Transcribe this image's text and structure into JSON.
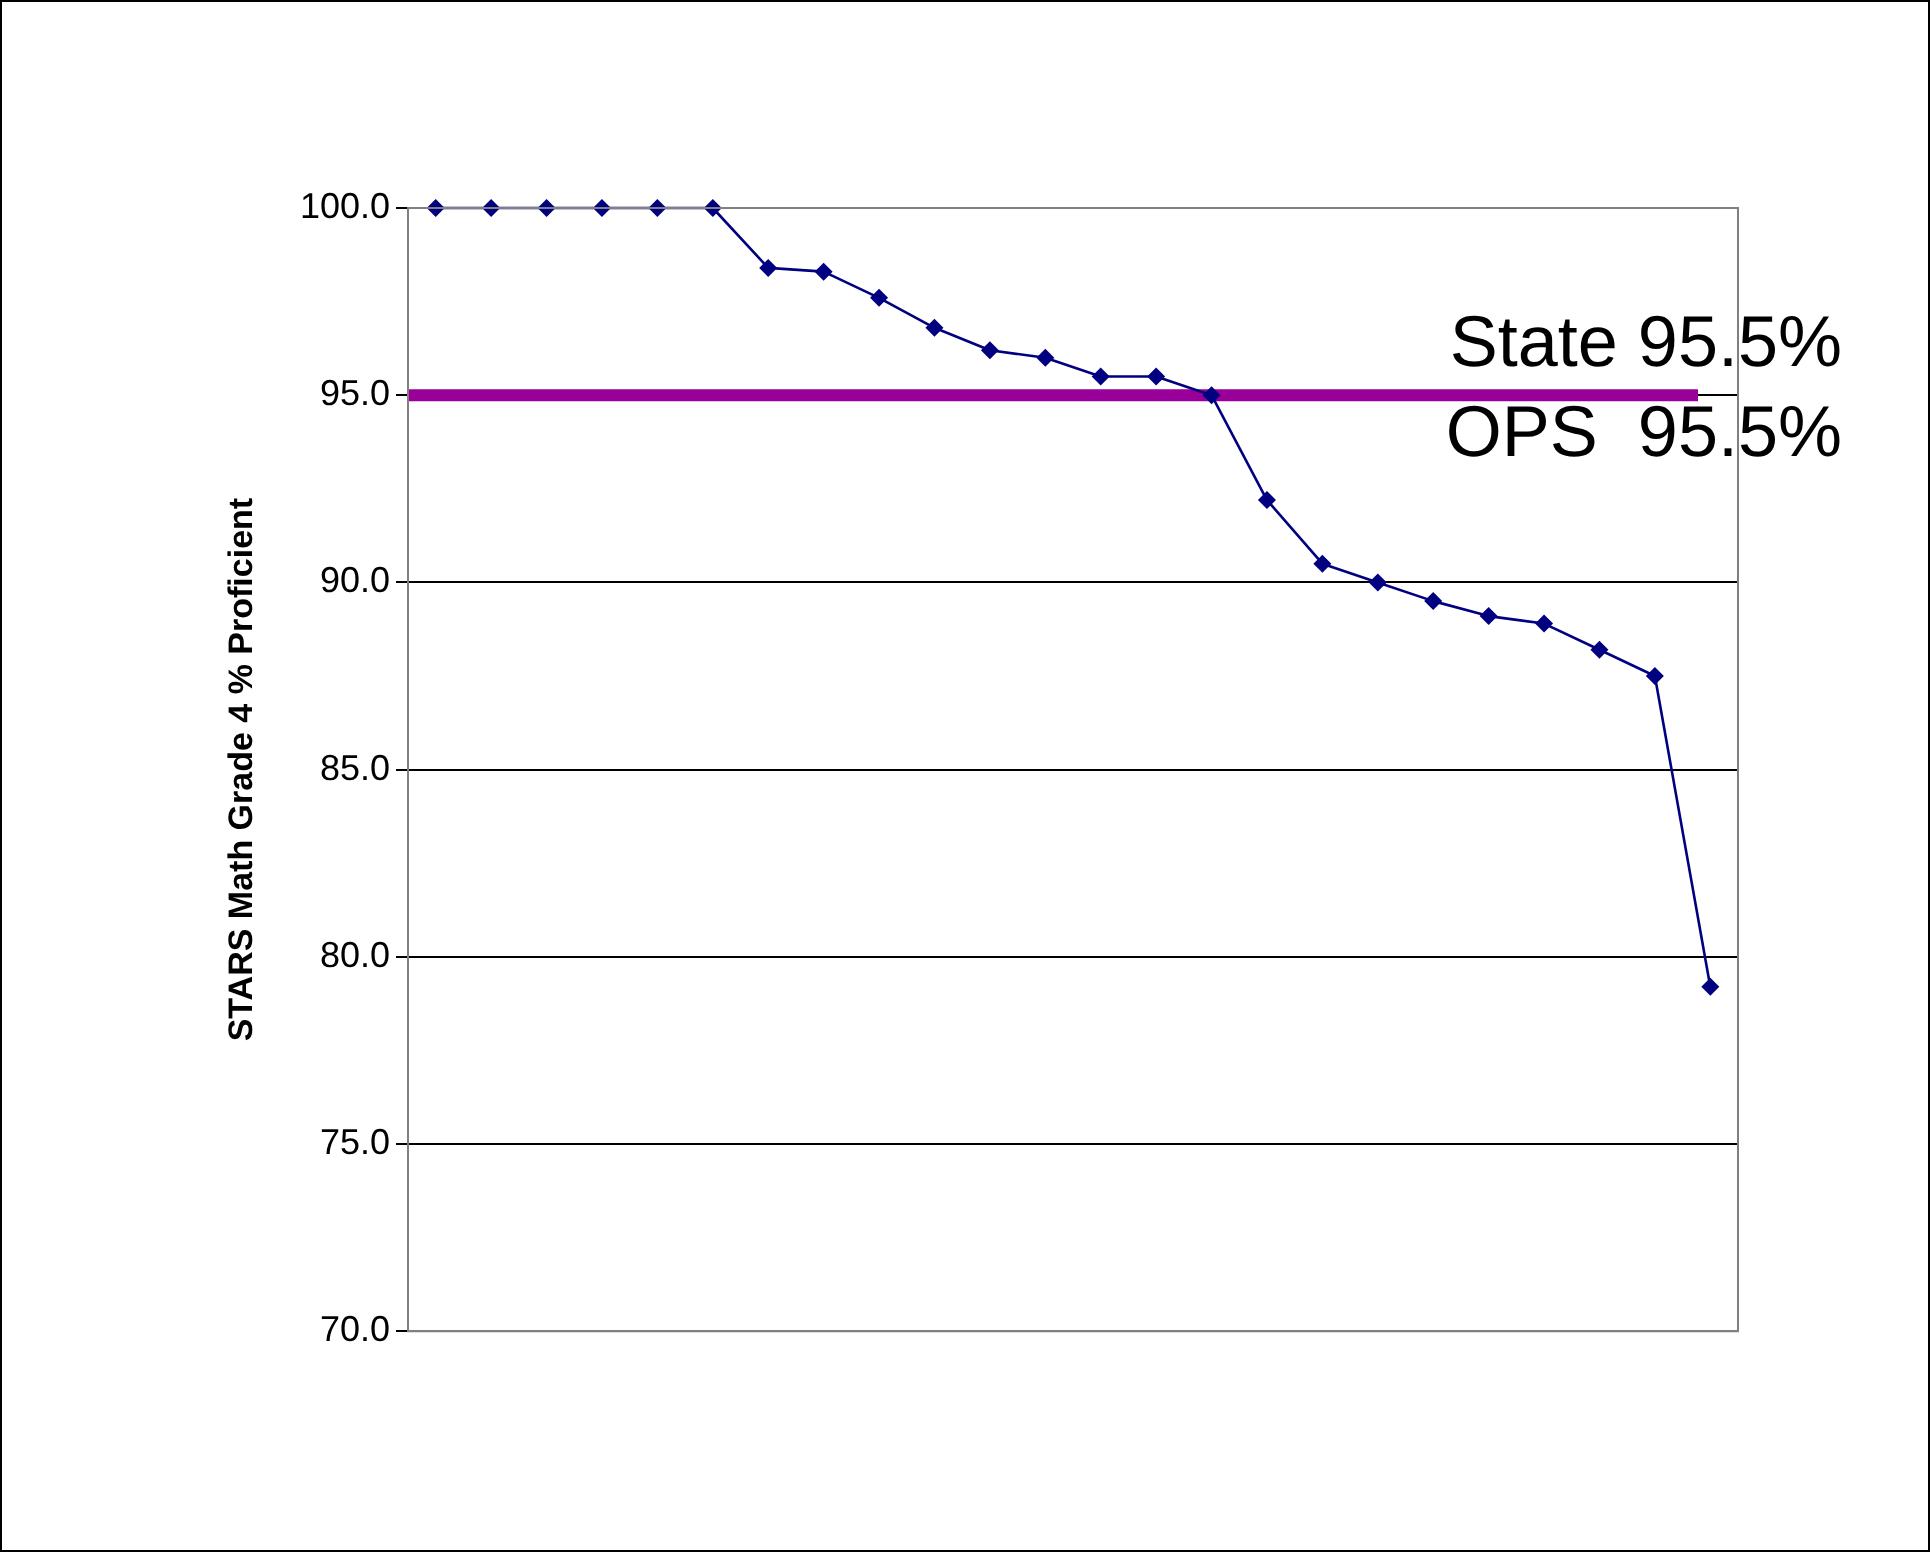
{
  "chart_data": {
    "type": "line",
    "ylabel": "STARS Math Grade 4 % Proficient",
    "categories": [
      null,
      null,
      null,
      null,
      null,
      null,
      null,
      null,
      null,
      null,
      null,
      null,
      null,
      null,
      null,
      null,
      null,
      null,
      null,
      null,
      null,
      null,
      null,
      null
    ],
    "series": [
      {
        "color": "#000080",
        "values": [
          100.0,
          100.0,
          100.0,
          100.0,
          100.0,
          100.0,
          98.4,
          98.3,
          97.6,
          96.8,
          96.2,
          96.0,
          95.5,
          95.5,
          95.0,
          92.2,
          90.5,
          90.0,
          89.5,
          89.1,
          88.9,
          88.2,
          87.5,
          79.2
        ]
      }
    ],
    "ylim": [
      70,
      100
    ],
    "yticks": [
      {
        "value": 70,
        "label": "70.0"
      },
      {
        "value": 75,
        "label": "75.0"
      },
      {
        "value": 80,
        "label": "80.0"
      },
      {
        "value": 85,
        "label": "85.0"
      },
      {
        "value": 90,
        "label": "90.0"
      },
      {
        "value": 95,
        "label": "95.0"
      },
      {
        "value": 100,
        "label": "100.0"
      }
    ],
    "grid": "y",
    "legend": false,
    "marker": "diamond",
    "line_style": "solid",
    "ref_lines": [
      {
        "axis": "y",
        "value": 95.0,
        "color": "#990099"
      }
    ],
    "annotations": [
      "State 95.5%",
      "OPS  95.5%"
    ]
  }
}
